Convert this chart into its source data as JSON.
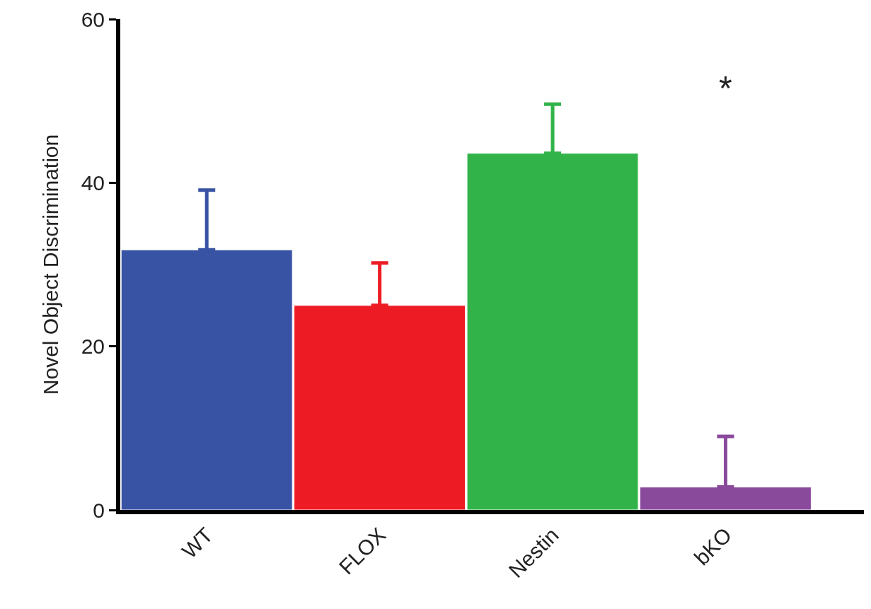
{
  "chart_data": {
    "type": "bar",
    "ylabel": "Novel Object Discrimination",
    "categories": [
      "WT",
      "FLOX",
      "Nestin",
      "bKO"
    ],
    "values": [
      31.8,
      25.0,
      43.6,
      2.8
    ],
    "colors": [
      "#3953a4",
      "#ed1c24",
      "#32b34a",
      "#8a4a9c"
    ],
    "errors": [
      [
        31.8,
        39.1
      ],
      [
        25.0,
        30.2
      ],
      [
        43.6,
        49.6
      ],
      [
        2.8,
        9.0
      ]
    ],
    "ylim": [
      0,
      60
    ],
    "yticks": [
      0,
      20,
      40,
      60
    ],
    "grid": false,
    "annotations": [
      "*"
    ]
  }
}
